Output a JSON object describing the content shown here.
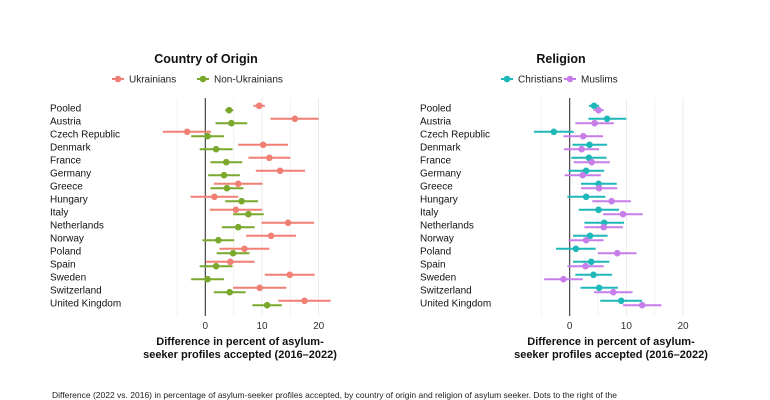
{
  "caption": "Difference (2022 vs. 2016) in percentage of asylum-seeker profiles accepted, by country of origin and religion of asylum seeker. Dots to the right of the",
  "chart_data": [
    {
      "type": "scatter",
      "title": "Country of Origin",
      "xlabel": "Difference in percent of asylum-seeker profiles accepted (2016–2022)",
      "xlim": [
        -8,
        22
      ],
      "xticks": [
        0,
        10,
        20
      ],
      "categories": [
        "Pooled",
        "Austria",
        "Czech Republic",
        "Denmark",
        "France",
        "Germany",
        "Greece",
        "Hungary",
        "Italy",
        "Netherlands",
        "Norway",
        "Poland",
        "Spain",
        "Sweden",
        "Switzerland",
        "United Kingdom"
      ],
      "legend": "top",
      "series": [
        {
          "name": "Ukrainians",
          "color": "#f07f74",
          "values": [
            9.5,
            15.8,
            -3.2,
            10.2,
            11.3,
            13.2,
            5.8,
            1.6,
            5.4,
            14.6,
            11.6,
            6.9,
            4.4,
            14.9,
            9.6,
            17.5
          ],
          "low": [
            8.5,
            11.5,
            -7.5,
            5.8,
            7.6,
            8.9,
            1.5,
            -2.6,
            0.8,
            9.9,
            7.2,
            2.5,
            0.1,
            10.5,
            4.9,
            12.9
          ],
          "high": [
            10.5,
            20.0,
            1.0,
            14.6,
            15.0,
            17.6,
            10.1,
            5.8,
            10.0,
            19.2,
            16.0,
            11.3,
            8.7,
            19.3,
            14.3,
            22.1
          ]
        },
        {
          "name": "Non-Ukrainians",
          "color": "#7aa82c",
          "values": [
            4.2,
            4.6,
            0.4,
            1.9,
            3.7,
            3.3,
            3.8,
            6.4,
            7.6,
            5.8,
            2.3,
            4.9,
            1.9,
            0.4,
            4.3,
            10.9
          ],
          "low": [
            3.5,
            1.8,
            -2.5,
            -1.0,
            0.9,
            0.5,
            0.9,
            3.5,
            4.9,
            2.9,
            -0.5,
            2.0,
            -1.0,
            -2.5,
            1.5,
            8.3
          ],
          "high": [
            4.9,
            7.4,
            3.3,
            4.8,
            6.5,
            6.1,
            6.7,
            9.3,
            10.3,
            8.7,
            5.1,
            7.8,
            4.8,
            3.3,
            7.1,
            13.5
          ]
        }
      ]
    },
    {
      "type": "scatter",
      "title": "Religion",
      "xlabel": "Difference in percent of asylum-seeker profiles accepted (2016–2022)",
      "xlim": [
        -7,
        23
      ],
      "xticks": [
        0,
        10,
        20
      ],
      "categories": [
        "Pooled",
        "Austria",
        "Czech Republic",
        "Denmark",
        "France",
        "Germany",
        "Greece",
        "Hungary",
        "Italy",
        "Netherlands",
        "Norway",
        "Poland",
        "Spain",
        "Sweden",
        "Switzerland",
        "United Kingdom"
      ],
      "legend": "top",
      "series": [
        {
          "name": "Christians",
          "color": "#1fb8b8",
          "values": [
            4.3,
            6.6,
            -2.8,
            3.5,
            3.4,
            2.9,
            5.1,
            2.9,
            5.1,
            6.1,
            3.6,
            1.1,
            3.8,
            4.2,
            5.2,
            9.1
          ],
          "low": [
            3.4,
            3.3,
            -6.3,
            0.5,
            0.3,
            -0.2,
            2.0,
            -0.4,
            1.6,
            2.6,
            0.6,
            -2.4,
            0.6,
            1.0,
            1.9,
            5.4
          ],
          "high": [
            5.2,
            10.0,
            0.7,
            6.6,
            6.5,
            6.1,
            8.3,
            6.3,
            8.7,
            9.6,
            6.7,
            4.6,
            7.0,
            7.5,
            8.5,
            12.8
          ]
        },
        {
          "name": "Muslims",
          "color": "#c77ee8",
          "values": [
            5.1,
            4.4,
            2.4,
            2.1,
            3.9,
            2.3,
            5.2,
            7.4,
            9.4,
            6.0,
            2.9,
            8.4,
            2.8,
            -1.1,
            7.7,
            12.8
          ],
          "low": [
            4.2,
            1.0,
            -1.1,
            -1.0,
            0.7,
            -0.9,
            2.0,
            4.0,
            5.9,
            2.6,
            -0.2,
            5.0,
            -0.4,
            -4.5,
            4.3,
            9.4
          ],
          "high": [
            6.0,
            7.8,
            5.9,
            5.2,
            7.1,
            5.5,
            8.4,
            10.8,
            12.9,
            9.4,
            6.0,
            11.8,
            6.0,
            2.3,
            11.1,
            16.2
          ]
        }
      ]
    }
  ]
}
